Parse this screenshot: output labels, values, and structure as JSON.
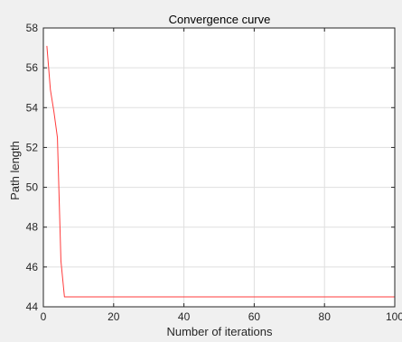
{
  "chart_data": {
    "type": "line",
    "title": "Convergence curve",
    "xlabel": "Number of iterations",
    "ylabel": "Path length",
    "xlim": [
      0,
      100
    ],
    "ylim": [
      44,
      58
    ],
    "xticks": [
      0,
      20,
      40,
      60,
      80,
      100
    ],
    "yticks": [
      44,
      46,
      48,
      50,
      52,
      54,
      56,
      58
    ],
    "grid": true,
    "series": [
      {
        "color": "#ff3b3b",
        "x": [
          1,
          2,
          3,
          4,
          5,
          6,
          7,
          10,
          20,
          30,
          40,
          50,
          60,
          70,
          80,
          90,
          100
        ],
        "y": [
          57.1,
          54.9,
          53.8,
          52.5,
          46.3,
          44.5,
          44.5,
          44.5,
          44.5,
          44.5,
          44.5,
          44.5,
          44.5,
          44.5,
          44.5,
          44.5,
          44.5
        ]
      }
    ]
  },
  "colors": {
    "figure_background": "#f0f0f0",
    "plot_background": "#ffffff",
    "grid": "#dfdfdf",
    "axis": "#262626"
  }
}
